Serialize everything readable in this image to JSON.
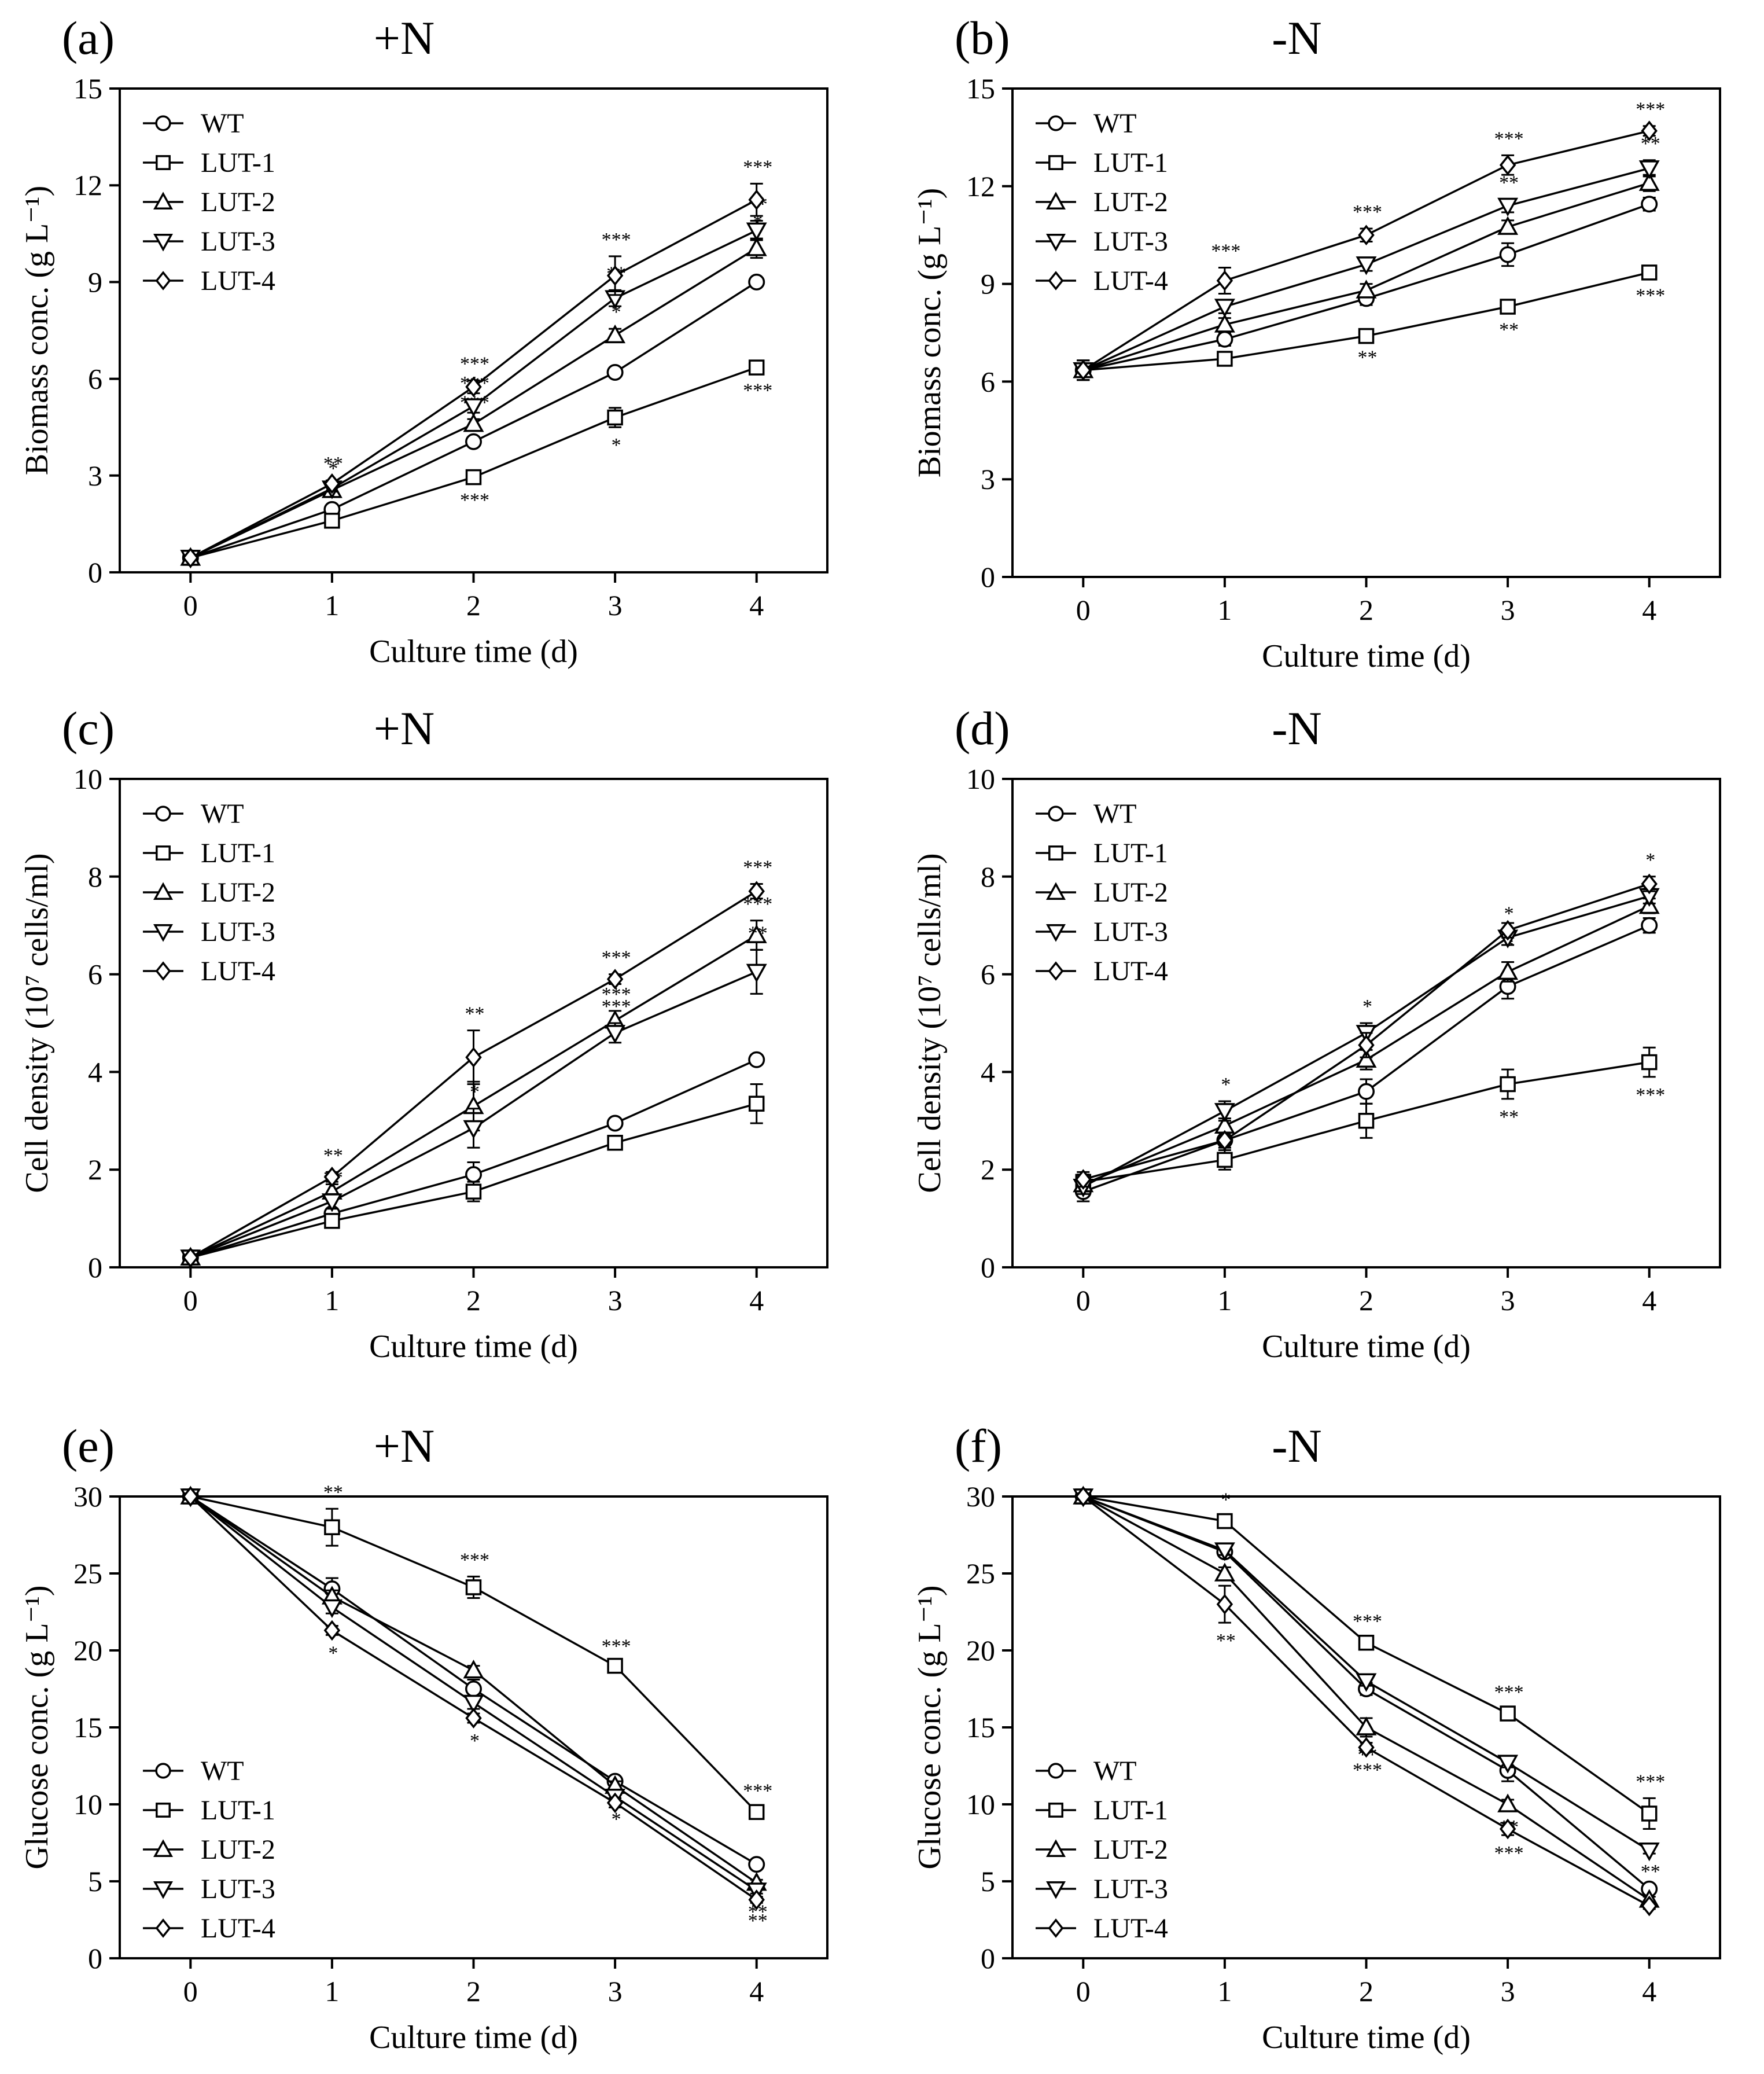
{
  "figure": {
    "background": "#ffffff",
    "foreground": "#000000"
  },
  "chart_data": [
    {
      "type": "line",
      "panel": "(a)",
      "title": "+N",
      "xlabel": "Culture time (d)",
      "ylabel": "Biomass conc. (g L⁻¹)",
      "x": [
        0,
        1,
        2,
        3,
        4
      ],
      "xlim": [
        -0.5,
        4.5
      ],
      "ylim": [
        0,
        15
      ],
      "yticks": [
        0,
        3,
        6,
        9,
        12,
        15
      ],
      "legend_position": "top-left",
      "series": [
        {
          "name": "WT",
          "marker": "circle",
          "values": [
            0.45,
            1.95,
            4.05,
            6.2,
            9.0
          ],
          "errors": [
            0.05,
            0.1,
            0.1,
            0.1,
            0.1
          ]
        },
        {
          "name": "LUT-1",
          "marker": "square",
          "values": [
            0.45,
            1.6,
            2.95,
            4.8,
            6.35
          ],
          "errors": [
            0.05,
            0.1,
            0.15,
            0.3,
            0.15
          ],
          "sig": [
            "",
            "",
            "***",
            "*",
            "***"
          ]
        },
        {
          "name": "LUT-2",
          "marker": "triangle-up",
          "values": [
            0.45,
            2.55,
            4.6,
            7.35,
            10.05
          ],
          "errors": [
            0.05,
            0.15,
            0.15,
            0.2,
            0.3
          ],
          "sig": [
            "",
            "*",
            "***",
            "*",
            "*"
          ]
        },
        {
          "name": "LUT-3",
          "marker": "triangle-down",
          "values": [
            0.45,
            2.6,
            5.15,
            8.5,
            10.6
          ],
          "errors": [
            0.05,
            0.1,
            0.2,
            0.25,
            0.3
          ],
          "sig": [
            "",
            "",
            "***",
            "**",
            "**"
          ]
        },
        {
          "name": "LUT-4",
          "marker": "diamond",
          "values": [
            0.45,
            2.75,
            5.75,
            9.2,
            11.55
          ],
          "errors": [
            0.05,
            0.1,
            0.2,
            0.6,
            0.5
          ],
          "sig": [
            "",
            "**",
            "***",
            "***",
            "***"
          ]
        }
      ]
    },
    {
      "type": "line",
      "panel": "(b)",
      "title": "-N",
      "xlabel": "Culture time (d)",
      "ylabel": "Biomass conc. (g L⁻¹)",
      "x": [
        0,
        1,
        2,
        3,
        4
      ],
      "xlim": [
        -0.5,
        4.5
      ],
      "ylim": [
        0,
        15
      ],
      "yticks": [
        0,
        3,
        6,
        9,
        12,
        15
      ],
      "legend_position": "top-left",
      "series": [
        {
          "name": "WT",
          "marker": "circle",
          "values": [
            6.35,
            7.3,
            8.55,
            9.9,
            11.45
          ],
          "errors": [
            0.3,
            0.2,
            0.2,
            0.35,
            0.2
          ]
        },
        {
          "name": "LUT-1",
          "marker": "square",
          "values": [
            6.35,
            6.7,
            7.4,
            8.3,
            9.35
          ],
          "errors": [
            0.3,
            0.1,
            0.1,
            0.15,
            0.15
          ],
          "sig": [
            "",
            "",
            "**",
            "**",
            "***"
          ]
        },
        {
          "name": "LUT-2",
          "marker": "triangle-up",
          "values": [
            6.35,
            7.75,
            8.8,
            10.75,
            12.1
          ],
          "errors": [
            0.3,
            0.2,
            0.2,
            0.2,
            0.25
          ],
          "sig": [
            "",
            "",
            "",
            "",
            ""
          ]
        },
        {
          "name": "LUT-3",
          "marker": "triangle-down",
          "values": [
            6.35,
            8.3,
            9.6,
            11.4,
            12.55
          ],
          "errors": [
            0.3,
            0.2,
            0.2,
            0.2,
            0.25
          ],
          "sig": [
            "",
            "*",
            "*",
            "**",
            "**"
          ]
        },
        {
          "name": "LUT-4",
          "marker": "diamond",
          "values": [
            6.35,
            9.1,
            10.5,
            12.65,
            13.7
          ],
          "errors": [
            0.3,
            0.4,
            0.2,
            0.3,
            0.15
          ],
          "sig": [
            "",
            "***",
            "***",
            "***",
            "***"
          ]
        }
      ]
    },
    {
      "type": "line",
      "panel": "(c)",
      "title": "+N",
      "xlabel": "Culture time (d)",
      "ylabel": "Cell density (10⁷ cells/ml)",
      "x": [
        0,
        1,
        2,
        3,
        4
      ],
      "xlim": [
        -0.5,
        4.5
      ],
      "ylim": [
        0,
        10
      ],
      "yticks": [
        0,
        2,
        4,
        6,
        8,
        10
      ],
      "legend_position": "top-left",
      "series": [
        {
          "name": "WT",
          "marker": "circle",
          "values": [
            0.2,
            1.1,
            1.9,
            2.95,
            4.25
          ],
          "errors": [
            0.05,
            0.1,
            0.25,
            0.1,
            0.1
          ]
        },
        {
          "name": "LUT-1",
          "marker": "square",
          "values": [
            0.2,
            0.95,
            1.55,
            2.55,
            3.35
          ],
          "errors": [
            0.05,
            0.1,
            0.2,
            0.1,
            0.4
          ],
          "sig": [
            "",
            "",
            "",
            "",
            ""
          ]
        },
        {
          "name": "LUT-2",
          "marker": "triangle-up",
          "values": [
            0.2,
            1.55,
            3.3,
            5.05,
            6.8
          ],
          "errors": [
            0.05,
            0.15,
            0.5,
            0.2,
            0.3
          ],
          "sig": [
            "",
            "",
            "",
            "***",
            "***"
          ]
        },
        {
          "name": "LUT-3",
          "marker": "triangle-down",
          "values": [
            0.2,
            1.35,
            2.85,
            4.8,
            6.05
          ],
          "errors": [
            0.05,
            0.15,
            0.4,
            0.2,
            0.45
          ],
          "sig": [
            "",
            "**",
            "*",
            "***",
            "**"
          ]
        },
        {
          "name": "LUT-4",
          "marker": "diamond",
          "values": [
            0.2,
            1.85,
            4.3,
            5.9,
            7.7
          ],
          "errors": [
            0.05,
            0.1,
            0.55,
            0.1,
            0.15
          ],
          "sig": [
            "",
            "**",
            "**",
            "***",
            "***"
          ]
        }
      ]
    },
    {
      "type": "line",
      "panel": "(d)",
      "title": "-N",
      "xlabel": "Culture time (d)",
      "ylabel": "Cell density (10⁷ cells/ml)",
      "x": [
        0,
        1,
        2,
        3,
        4
      ],
      "xlim": [
        -0.5,
        4.5
      ],
      "ylim": [
        0,
        10
      ],
      "yticks": [
        0,
        2,
        4,
        6,
        8,
        10
      ],
      "legend_position": "top-left",
      "series": [
        {
          "name": "WT",
          "marker": "circle",
          "values": [
            1.55,
            2.6,
            3.6,
            5.75,
            7.0
          ],
          "errors": [
            0.2,
            0.15,
            0.25,
            0.25,
            0.15
          ]
        },
        {
          "name": "LUT-1",
          "marker": "square",
          "values": [
            1.75,
            2.2,
            3.0,
            3.75,
            4.2
          ],
          "errors": [
            0.15,
            0.2,
            0.35,
            0.3,
            0.3
          ],
          "sig": [
            "",
            "",
            "",
            "**",
            "***"
          ]
        },
        {
          "name": "LUT-2",
          "marker": "triangle-up",
          "values": [
            1.7,
            2.9,
            4.25,
            6.05,
            7.4
          ],
          "errors": [
            0.15,
            0.15,
            0.2,
            0.2,
            0.15
          ],
          "sig": [
            "",
            "",
            "*",
            "*",
            ""
          ]
        },
        {
          "name": "LUT-3",
          "marker": "triangle-down",
          "values": [
            1.65,
            3.2,
            4.8,
            6.75,
            7.6
          ],
          "errors": [
            0.15,
            0.2,
            0.2,
            0.15,
            0.15
          ],
          "sig": [
            "",
            "*",
            "*",
            "*",
            ""
          ]
        },
        {
          "name": "LUT-4",
          "marker": "diamond",
          "values": [
            1.8,
            2.6,
            4.55,
            6.9,
            7.85
          ],
          "errors": [
            0.15,
            0.15,
            0.25,
            0.15,
            0.15
          ],
          "sig": [
            "",
            "",
            "",
            "",
            "*"
          ]
        }
      ]
    },
    {
      "type": "line",
      "panel": "(e)",
      "title": "+N",
      "xlabel": "Culture time (d)",
      "ylabel": "Glucose conc. (g L⁻¹)",
      "x": [
        0,
        1,
        2,
        3,
        4
      ],
      "xlim": [
        -0.5,
        4.5
      ],
      "ylim": [
        0,
        30
      ],
      "yticks": [
        0,
        5,
        10,
        15,
        20,
        25,
        30
      ],
      "legend_position": "bottom-left",
      "series": [
        {
          "name": "WT",
          "marker": "circle",
          "values": [
            30,
            24.0,
            17.5,
            11.5,
            6.1
          ],
          "errors": [
            0.2,
            0.7,
            0.6,
            0.2,
            0.2
          ]
        },
        {
          "name": "LUT-1",
          "marker": "square",
          "values": [
            30,
            28.0,
            24.1,
            19.0,
            9.5
          ],
          "errors": [
            0.2,
            1.2,
            0.7,
            0.2,
            0.3
          ],
          "sig": [
            "",
            "**",
            "***",
            "***",
            "***"
          ]
        },
        {
          "name": "LUT-2",
          "marker": "triangle-up",
          "values": [
            30,
            23.5,
            18.7,
            11.2,
            4.9
          ],
          "errors": [
            0.2,
            0.4,
            0.3,
            0.3,
            0.2
          ],
          "sig": [
            "",
            "",
            "",
            "*",
            "*"
          ]
        },
        {
          "name": "LUT-3",
          "marker": "triangle-down",
          "values": [
            30,
            22.8,
            16.6,
            10.5,
            4.4
          ],
          "errors": [
            0.2,
            0.4,
            0.4,
            0.3,
            0.2
          ],
          "sig": [
            "",
            "",
            "",
            "*",
            "**"
          ]
        },
        {
          "name": "LUT-4",
          "marker": "diamond",
          "values": [
            30,
            21.3,
            15.6,
            10.1,
            3.8
          ],
          "errors": [
            0.2,
            0.3,
            0.3,
            0.3,
            0.2
          ],
          "sig": [
            "",
            "*",
            "*",
            "",
            "**"
          ]
        }
      ]
    },
    {
      "type": "line",
      "panel": "(f)",
      "title": "-N",
      "xlabel": "Culture time (d)",
      "ylabel": "Glucose conc. (g L⁻¹)",
      "x": [
        0,
        1,
        2,
        3,
        4
      ],
      "xlim": [
        -0.5,
        4.5
      ],
      "ylim": [
        0,
        30
      ],
      "yticks": [
        0,
        5,
        10,
        15,
        20,
        25,
        30
      ],
      "legend_position": "bottom-left",
      "series": [
        {
          "name": "WT",
          "marker": "circle",
          "values": [
            30,
            26.4,
            17.5,
            12.2,
            4.5
          ],
          "errors": [
            0.2,
            0.3,
            0.4,
            0.7,
            0.2
          ]
        },
        {
          "name": "LUT-1",
          "marker": "square",
          "values": [
            30,
            28.4,
            20.5,
            15.9,
            9.4
          ],
          "errors": [
            0.2,
            0.3,
            0.3,
            0.3,
            1.0
          ],
          "sig": [
            "",
            "*",
            "***",
            "***",
            "***"
          ]
        },
        {
          "name": "LUT-2",
          "marker": "triangle-up",
          "values": [
            30,
            25.0,
            15.0,
            10.0,
            3.8
          ],
          "errors": [
            0.2,
            0.4,
            0.6,
            0.3,
            0.2
          ],
          "sig": [
            "",
            "",
            "**",
            "**",
            ""
          ]
        },
        {
          "name": "LUT-3",
          "marker": "triangle-down",
          "values": [
            30,
            26.5,
            18.0,
            12.7,
            7.0
          ],
          "errors": [
            0.2,
            0.3,
            0.3,
            0.3,
            0.2
          ],
          "sig": [
            "",
            "",
            "",
            "",
            "**"
          ]
        },
        {
          "name": "LUT-4",
          "marker": "diamond",
          "values": [
            30,
            23.0,
            13.7,
            8.4,
            3.4
          ],
          "errors": [
            0.2,
            1.2,
            0.3,
            0.4,
            0.2
          ],
          "sig": [
            "",
            "**",
            "***",
            "***",
            ""
          ]
        }
      ]
    }
  ]
}
